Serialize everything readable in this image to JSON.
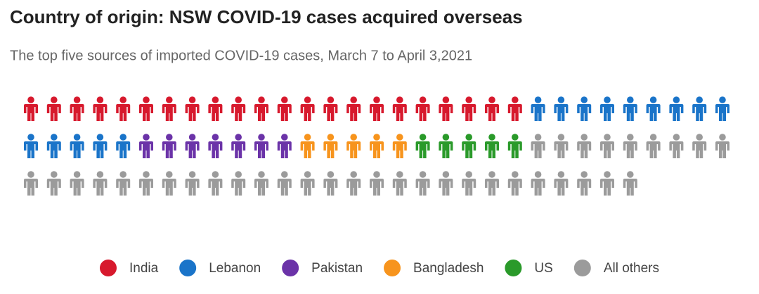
{
  "chart_data": {
    "type": "pictogram",
    "title": "Country of origin: NSW COVID-19 cases acquired overseas",
    "subtitle": "The top five sources of imported COVID-19 cases, March 7 to April 3,2021",
    "categories": [
      "India",
      "Lebanon",
      "Pakistan",
      "Bangladesh",
      "US",
      "All others"
    ],
    "values": [
      22,
      14,
      7,
      5,
      5,
      36
    ],
    "colors": [
      "#d7192d",
      "#1a74c9",
      "#6b33a8",
      "#f7941d",
      "#2a9a2a",
      "#9b9b9b"
    ],
    "legend": "bottom"
  }
}
